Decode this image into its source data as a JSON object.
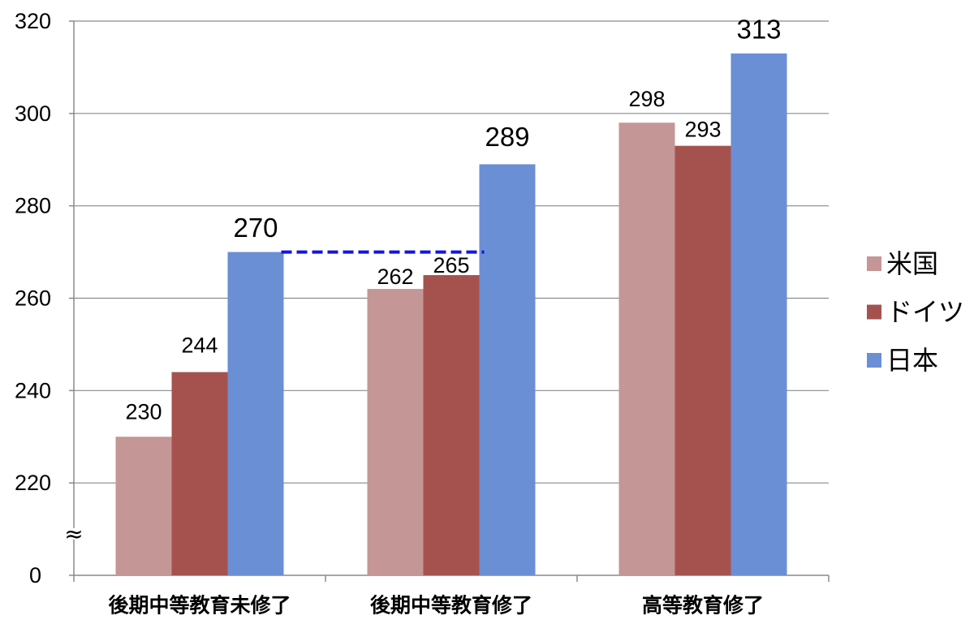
{
  "chart_data": {
    "type": "bar",
    "categories": [
      "後期中等教育未修了",
      "後期中等教育修了",
      "高等教育修了"
    ],
    "series": [
      {
        "name": "米国",
        "values": [
          230,
          262,
          298
        ],
        "color": "#C49695"
      },
      {
        "name": "ドイツ",
        "values": [
          244,
          265,
          293
        ],
        "color": "#A5524F"
      },
      {
        "name": "日本",
        "values": [
          270,
          289,
          313
        ],
        "color": "#6B8FD4"
      }
    ],
    "y_axis": {
      "ticks": [
        0,
        220,
        240,
        260,
        280,
        300,
        320
      ],
      "axis_break": true,
      "break_symbol": "≈"
    },
    "ylim": [
      0,
      320
    ],
    "grid": true,
    "legend": "right",
    "data_labels": true,
    "annotations": [
      {
        "type": "dashed-line",
        "value": 270,
        "color": "#1414E0"
      }
    ]
  }
}
